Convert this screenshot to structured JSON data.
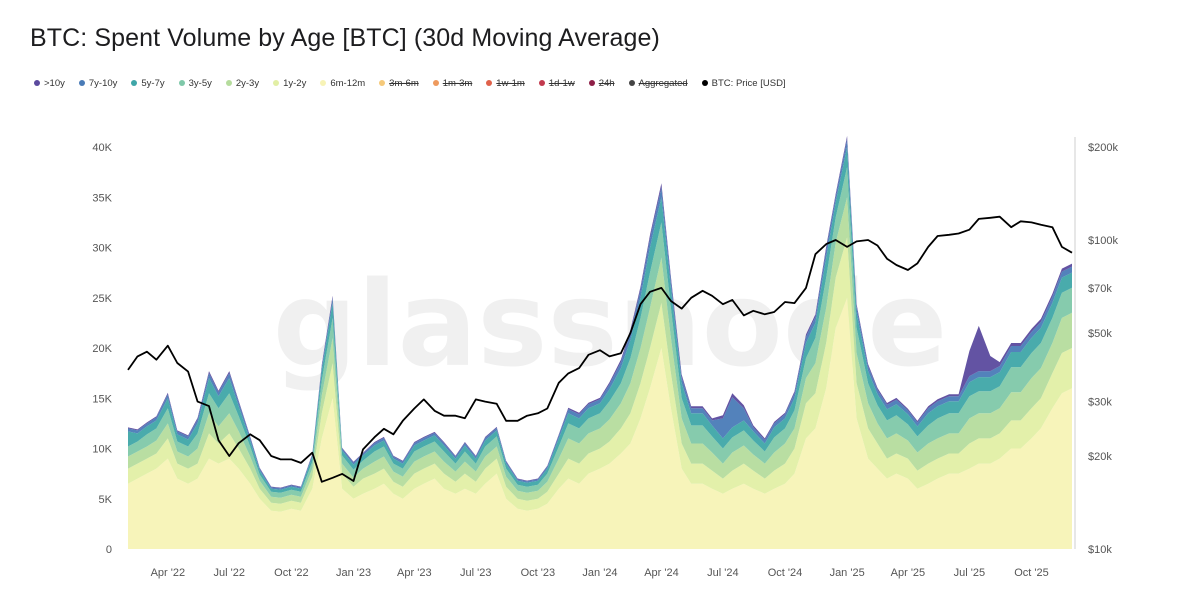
{
  "title": "BTC: Spent Volume by Age [BTC] (30d Moving Average)",
  "watermark": "glassnode",
  "legend": [
    {
      "label": ">10y",
      "color": "#5b4a9e",
      "active": true
    },
    {
      "label": "7y-10y",
      "color": "#4a7bb7",
      "active": true
    },
    {
      "label": "5y-7y",
      "color": "#3fa6a8",
      "active": true
    },
    {
      "label": "3y-5y",
      "color": "#7fc8a9",
      "active": true
    },
    {
      "label": "2y-3y",
      "color": "#b5dc9d",
      "active": true
    },
    {
      "label": "1y-2y",
      "color": "#e2efa5",
      "active": true
    },
    {
      "label": "6m-12m",
      "color": "#f7f3b6",
      "active": true
    },
    {
      "label": "3m-6m",
      "color": "#f5c97a",
      "active": false
    },
    {
      "label": "1m-3m",
      "color": "#ee9a5e",
      "active": false
    },
    {
      "label": "1w-1m",
      "color": "#e0614a",
      "active": false
    },
    {
      "label": "1d-1w",
      "color": "#c23a4e",
      "active": false
    },
    {
      "label": "24h",
      "color": "#8e1f47",
      "active": false
    },
    {
      "label": "Aggregated",
      "color": "#444444",
      "active": false
    },
    {
      "label": "BTC: Price [USD]",
      "color": "#000000",
      "active": true
    }
  ],
  "chart_data": {
    "type": "area",
    "stacked": true,
    "x_start": "2022-02-01",
    "x_end": "2025-11-30",
    "x_ticks": [
      {
        "label": "Apr '22",
        "date": "2022-04-01"
      },
      {
        "label": "Jul '22",
        "date": "2022-07-01"
      },
      {
        "label": "Oct '22",
        "date": "2022-10-01"
      },
      {
        "label": "Jan '23",
        "date": "2023-01-01"
      },
      {
        "label": "Apr '23",
        "date": "2023-04-01"
      },
      {
        "label": "Jul '23",
        "date": "2023-07-01"
      },
      {
        "label": "Oct '23",
        "date": "2023-10-01"
      },
      {
        "label": "Jan '24",
        "date": "2024-01-01"
      },
      {
        "label": "Apr '24",
        "date": "2024-04-01"
      },
      {
        "label": "Jul '24",
        "date": "2024-07-01"
      },
      {
        "label": "Oct '24",
        "date": "2024-10-01"
      },
      {
        "label": "Jan '25",
        "date": "2025-01-01"
      },
      {
        "label": "Apr '25",
        "date": "2025-04-01"
      },
      {
        "label": "Jul '25",
        "date": "2025-07-01"
      },
      {
        "label": "Oct '25",
        "date": "2025-10-01"
      }
    ],
    "y_left": {
      "min": 0,
      "max": 40000,
      "ticks": [
        0,
        5000,
        10000,
        15000,
        20000,
        25000,
        30000,
        35000,
        40000
      ],
      "tick_labels": [
        "0",
        "5K",
        "10K",
        "15K",
        "20K",
        "25K",
        "30K",
        "35K",
        "40K"
      ]
    },
    "y_right": {
      "scale": "log",
      "min": 10000,
      "max": 200000,
      "ticks": [
        10000,
        20000,
        30000,
        50000,
        70000,
        100000,
        200000
      ],
      "tick_labels": [
        "$10k",
        "$20k",
        "$30k",
        "$50k",
        "$70k",
        "$100k",
        "$200k"
      ]
    },
    "dates": [
      "2022-02-01",
      "2022-02-15",
      "2022-03-01",
      "2022-03-15",
      "2022-04-01",
      "2022-04-15",
      "2022-05-01",
      "2022-05-15",
      "2022-06-01",
      "2022-06-15",
      "2022-07-01",
      "2022-07-15",
      "2022-08-01",
      "2022-08-15",
      "2022-09-01",
      "2022-09-15",
      "2022-10-01",
      "2022-10-15",
      "2022-11-01",
      "2022-11-15",
      "2022-12-01",
      "2022-12-15",
      "2023-01-01",
      "2023-01-15",
      "2023-02-01",
      "2023-02-15",
      "2023-03-01",
      "2023-03-15",
      "2023-04-01",
      "2023-04-15",
      "2023-05-01",
      "2023-05-15",
      "2023-06-01",
      "2023-06-15",
      "2023-07-01",
      "2023-07-15",
      "2023-08-01",
      "2023-08-15",
      "2023-09-01",
      "2023-09-15",
      "2023-10-01",
      "2023-10-15",
      "2023-11-01",
      "2023-11-15",
      "2023-12-01",
      "2023-12-15",
      "2024-01-01",
      "2024-01-15",
      "2024-02-01",
      "2024-02-15",
      "2024-03-01",
      "2024-03-15",
      "2024-04-01",
      "2024-04-15",
      "2024-05-01",
      "2024-05-15",
      "2024-06-01",
      "2024-06-15",
      "2024-07-01",
      "2024-07-15",
      "2024-08-01",
      "2024-08-15",
      "2024-09-01",
      "2024-09-15",
      "2024-10-01",
      "2024-10-15",
      "2024-11-01",
      "2024-11-15",
      "2024-12-01",
      "2024-12-15",
      "2025-01-01",
      "2025-01-15",
      "2025-02-01",
      "2025-02-15",
      "2025-03-01",
      "2025-03-15",
      "2025-04-01",
      "2025-04-15",
      "2025-05-01",
      "2025-05-15",
      "2025-06-01",
      "2025-06-15",
      "2025-07-01",
      "2025-07-15",
      "2025-08-01",
      "2025-08-15",
      "2025-09-01",
      "2025-09-15",
      "2025-10-01",
      "2025-10-15",
      "2025-11-01",
      "2025-11-15",
      "2025-11-30"
    ],
    "series": [
      {
        "name": "6m-12m",
        "values": [
          6500,
          7000,
          7500,
          8000,
          9000,
          7000,
          6500,
          7000,
          9000,
          8500,
          9000,
          8000,
          6500,
          5000,
          3800,
          3700,
          4000,
          3800,
          6000,
          11000,
          15000,
          6000,
          5000,
          5500,
          6000,
          6500,
          5500,
          5000,
          6000,
          6500,
          7000,
          6000,
          5500,
          6000,
          5500,
          6500,
          7500,
          5000,
          4000,
          3800,
          4000,
          4500,
          6000,
          7000,
          6500,
          7500,
          8000,
          8500,
          9500,
          10500,
          13000,
          16000,
          20000,
          14000,
          8000,
          6500,
          6500,
          6000,
          5500,
          6000,
          6500,
          6000,
          5500,
          6000,
          6500,
          7500,
          11000,
          12000,
          16000,
          22000,
          25000,
          13000,
          9000,
          8000,
          7000,
          7500,
          7000,
          6000,
          6500,
          7000,
          7500,
          7500,
          8000,
          8500,
          8500,
          9000,
          10000,
          10000,
          11000,
          12000,
          14000,
          15500,
          16000
        ]
      },
      {
        "name": "1y-2y",
        "values": [
          1500,
          1500,
          1500,
          1500,
          2000,
          1500,
          1500,
          1500,
          2500,
          2000,
          2500,
          2000,
          1500,
          1000,
          800,
          800,
          800,
          800,
          1200,
          2500,
          3500,
          1500,
          1200,
          1500,
          1500,
          1500,
          1200,
          1200,
          1500,
          1500,
          1500,
          1500,
          1200,
          1500,
          1200,
          1500,
          1500,
          1200,
          1000,
          1000,
          1000,
          1200,
          1500,
          2000,
          2000,
          2000,
          2000,
          2200,
          2500,
          3000,
          3500,
          4000,
          4500,
          3500,
          2500,
          2000,
          2000,
          1800,
          1500,
          1800,
          2000,
          1800,
          1500,
          1800,
          2000,
          2500,
          3500,
          3500,
          4500,
          5000,
          6000,
          3500,
          3000,
          2500,
          2000,
          2000,
          2000,
          1800,
          2000,
          2000,
          2000,
          2000,
          2500,
          2500,
          2500,
          2500,
          2800,
          2800,
          3000,
          3000,
          3500,
          4000,
          4000
        ]
      },
      {
        "name": "2y-3y",
        "values": [
          1200,
          1200,
          1200,
          1300,
          1500,
          1200,
          1200,
          1500,
          2000,
          1700,
          2000,
          1700,
          1200,
          800,
          600,
          600,
          600,
          600,
          800,
          1800,
          2500,
          1000,
          900,
          1000,
          1200,
          1200,
          1000,
          1000,
          1200,
          1200,
          1200,
          1200,
          1000,
          1200,
          1000,
          1200,
          1200,
          1000,
          800,
          800,
          800,
          1000,
          1500,
          2000,
          2000,
          2000,
          2000,
          2200,
          2500,
          3000,
          3500,
          4000,
          4500,
          3500,
          2500,
          2000,
          2000,
          1800,
          1500,
          1800,
          1800,
          1600,
          1500,
          1800,
          2000,
          2000,
          2500,
          3000,
          3500,
          3500,
          4000,
          3000,
          2500,
          2000,
          2000,
          2000,
          1800,
          1800,
          2000,
          2000,
          2000,
          2000,
          2500,
          2500,
          2500,
          2500,
          2800,
          2800,
          3000,
          3000,
          3000,
          3500,
          3500
        ]
      },
      {
        "name": "3y-5y",
        "values": [
          1000,
          1000,
          1200,
          1200,
          1500,
          1000,
          1000,
          1500,
          2000,
          1800,
          2000,
          1500,
          1000,
          600,
          500,
          500,
          500,
          500,
          700,
          1500,
          2000,
          800,
          800,
          800,
          1000,
          1000,
          800,
          800,
          1000,
          1000,
          1000,
          1000,
          800,
          1000,
          800,
          1000,
          1000,
          800,
          600,
          600,
          600,
          800,
          1200,
          1500,
          1500,
          1500,
          1500,
          1800,
          2000,
          2500,
          3000,
          3500,
          3500,
          3000,
          2000,
          1800,
          1800,
          1600,
          1500,
          1500,
          1500,
          1400,
          1200,
          1500,
          1500,
          1800,
          2000,
          2500,
          3000,
          2500,
          3000,
          2500,
          2000,
          1800,
          1800,
          1800,
          1600,
          1600,
          1800,
          2000,
          2000,
          2000,
          2200,
          2200,
          2200,
          2200,
          2500,
          2500,
          2500,
          2500,
          2500,
          2500,
          2500
        ]
      },
      {
        "name": "5y-7y",
        "values": [
          1500,
          800,
          800,
          800,
          1000,
          700,
          700,
          1000,
          1500,
          1200,
          1500,
          1000,
          600,
          400,
          300,
          300,
          300,
          300,
          500,
          1000,
          1500,
          500,
          500,
          500,
          600,
          600,
          500,
          500,
          600,
          600,
          600,
          600,
          500,
          600,
          500,
          600,
          600,
          500,
          400,
          400,
          400,
          500,
          800,
          1000,
          1000,
          1000,
          1000,
          1200,
          1500,
          1800,
          2000,
          2500,
          2500,
          2000,
          1500,
          1200,
          1200,
          1100,
          1000,
          1000,
          1000,
          900,
          800,
          1000,
          1000,
          1200,
          1500,
          1500,
          2000,
          1500,
          2000,
          1500,
          1200,
          1100,
          1100,
          1100,
          1000,
          1000,
          1200,
          1200,
          1200,
          1200,
          1400,
          1400,
          1400,
          1400,
          1500,
          1500,
          1500,
          1500,
          1500,
          1500,
          1500
        ]
      },
      {
        "name": "7y-10y",
        "values": [
          300,
          300,
          300,
          300,
          400,
          300,
          300,
          400,
          500,
          400,
          500,
          400,
          300,
          200,
          150,
          150,
          150,
          150,
          200,
          400,
          500,
          200,
          200,
          200,
          250,
          250,
          200,
          200,
          250,
          250,
          250,
          250,
          200,
          250,
          200,
          250,
          250,
          200,
          150,
          150,
          150,
          200,
          300,
          400,
          400,
          400,
          400,
          500,
          600,
          700,
          800,
          900,
          1000,
          800,
          600,
          500,
          500,
          500,
          2000,
          3000,
          1200,
          400,
          350,
          400,
          400,
          500,
          600,
          600,
          800,
          600,
          800,
          600,
          500,
          450,
          450,
          450,
          400,
          400,
          500,
          500,
          500,
          500,
          600,
          600,
          600,
          600,
          600,
          600,
          600,
          600,
          600,
          600,
          600
        ]
      },
      {
        "name": ">10y",
        "values": [
          100,
          100,
          100,
          100,
          150,
          100,
          100,
          150,
          200,
          150,
          200,
          150,
          100,
          80,
          60,
          60,
          60,
          60,
          80,
          150,
          200,
          80,
          80,
          80,
          100,
          100,
          80,
          80,
          100,
          100,
          100,
          100,
          80,
          100,
          80,
          100,
          100,
          80,
          60,
          60,
          60,
          80,
          100,
          150,
          150,
          150,
          150,
          200,
          250,
          300,
          300,
          350,
          400,
          300,
          250,
          200,
          200,
          200,
          300,
          400,
          300,
          200,
          150,
          150,
          150,
          200,
          250,
          250,
          300,
          250,
          300,
          250,
          200,
          180,
          180,
          180,
          150,
          150,
          200,
          200,
          200,
          200,
          2500,
          4500,
          1500,
          400,
          300,
          300,
          300,
          300,
          300,
          300,
          300
        ]
      }
    ],
    "price": {
      "name": "BTC: Price [USD]",
      "values": [
        38000,
        42000,
        43500,
        41000,
        45500,
        40000,
        37500,
        30000,
        29000,
        22500,
        20000,
        22000,
        23500,
        22500,
        20000,
        19500,
        19500,
        19000,
        20500,
        16500,
        17000,
        17500,
        16600,
        21000,
        23000,
        24500,
        23500,
        26000,
        28500,
        30500,
        28000,
        27000,
        27000,
        26500,
        30500,
        30000,
        29500,
        26000,
        26000,
        27000,
        27500,
        28500,
        34500,
        37000,
        38500,
        42500,
        44000,
        42000,
        43000,
        50000,
        62000,
        68000,
        70000,
        63500,
        60000,
        65000,
        68500,
        66000,
        62000,
        64000,
        57000,
        59000,
        57500,
        58500,
        63000,
        62500,
        70000,
        90000,
        97000,
        100000,
        95000,
        99000,
        100000,
        96000,
        87000,
        83000,
        80000,
        84000,
        95000,
        103000,
        104000,
        105000,
        108000,
        117000,
        118000,
        119000,
        110000,
        115000,
        114000,
        112000,
        110000,
        95000,
        91000
      ]
    }
  }
}
